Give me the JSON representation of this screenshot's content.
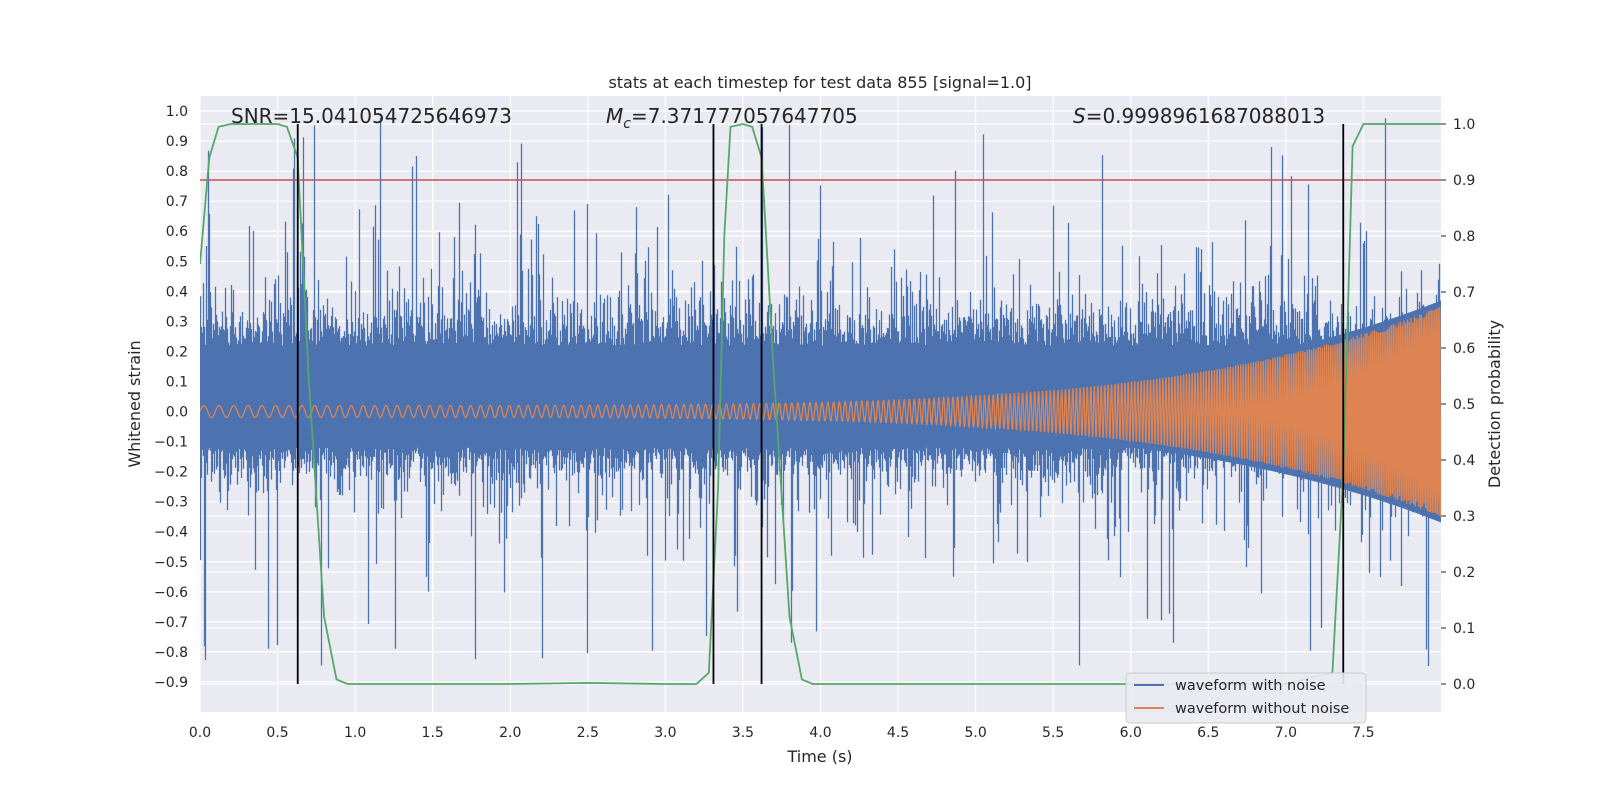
{
  "chart_data": {
    "type": "line",
    "title": "stats at each timestep for test data 855 [signal=1.0]",
    "xlabel": "Time (s)",
    "ylabel": "Whitened strain",
    "y2label": "Detection probability",
    "xlim": [
      0.0,
      8.0
    ],
    "ylim": [
      -1.0,
      1.05
    ],
    "y2lim": [
      -0.05,
      1.05
    ],
    "grid": true,
    "x_ticks": [
      "0.0",
      "0.5",
      "1.0",
      "1.5",
      "2.0",
      "2.5",
      "3.0",
      "3.5",
      "4.0",
      "4.5",
      "5.0",
      "5.5",
      "6.0",
      "6.5",
      "7.0",
      "7.5"
    ],
    "x_tick_values": [
      0.0,
      0.5,
      1.0,
      1.5,
      2.0,
      2.5,
      3.0,
      3.5,
      4.0,
      4.5,
      5.0,
      5.5,
      6.0,
      6.5,
      7.0,
      7.5
    ],
    "y_ticks": [
      "1.0",
      "0.9",
      "0.8",
      "0.7",
      "0.6",
      "0.5",
      "0.4",
      "0.3",
      "0.2",
      "0.1",
      "0.0",
      "−0.1",
      "−0.2",
      "−0.3",
      "−0.4",
      "−0.5",
      "−0.6",
      "−0.7",
      "−0.8",
      "−0.9"
    ],
    "y_tick_values": [
      1.0,
      0.9,
      0.8,
      0.7,
      0.6,
      0.5,
      0.4,
      0.3,
      0.2,
      0.1,
      0.0,
      -0.1,
      -0.2,
      -0.3,
      -0.4,
      -0.5,
      -0.6,
      -0.7,
      -0.8,
      -0.9
    ],
    "y2_ticks": [
      "1.0",
      "0.9",
      "0.8",
      "0.7",
      "0.6",
      "0.5",
      "0.4",
      "0.3",
      "0.2",
      "0.1",
      "0.0"
    ],
    "y2_tick_values": [
      1.0,
      0.9,
      0.8,
      0.7,
      0.6,
      0.5,
      0.4,
      0.3,
      0.2,
      0.1,
      0.0
    ],
    "annotations": {
      "snr": "SNR=15.041054725646973",
      "mc_symbol": "M",
      "mc_sub": "c",
      "mc_value": "=7.371777057647705",
      "s_symbol": "S",
      "s_value": "=0.9998961687088013"
    },
    "threshold": {
      "y2": 0.9,
      "color": "#c44e52"
    },
    "vertical_lines": [
      0.63,
      3.31,
      3.62,
      7.37
    ],
    "vertical_line_range_y2": [
      0.0,
      1.0
    ],
    "series": [
      {
        "name": "waveform with noise",
        "color": "#4c72b0",
        "description": "dense noisy strain, band roughly -0.3 to 0.45 with spikes up to 1.0 and down to -0.87"
      },
      {
        "name": "waveform without noise",
        "color": "#dd8452",
        "description": "chirp signal, amplitude ~0.02 rising to ~0.35 at 8.0 s"
      },
      {
        "name": "detection probability",
        "axis": "y2",
        "color": "#55a868",
        "x": [
          0.0,
          0.06,
          0.12,
          0.2,
          0.3,
          0.4,
          0.5,
          0.56,
          0.63,
          0.7,
          0.8,
          0.88,
          0.95,
          1.2,
          2.0,
          2.5,
          3.0,
          3.2,
          3.28,
          3.34,
          3.38,
          3.42,
          3.5,
          3.56,
          3.62,
          3.7,
          3.8,
          3.88,
          3.95,
          4.2,
          5.0,
          6.0,
          7.0,
          7.3,
          7.37,
          7.43,
          7.5,
          7.6,
          8.0
        ],
        "values": [
          0.75,
          0.94,
          0.995,
          1.0,
          1.0,
          1.0,
          1.0,
          0.995,
          0.94,
          0.55,
          0.12,
          0.008,
          0.0,
          0.0,
          0.0,
          0.002,
          0.0,
          0.0,
          0.02,
          0.35,
          0.8,
          0.995,
          1.0,
          0.995,
          0.94,
          0.55,
          0.12,
          0.008,
          0.0,
          0.0,
          0.0,
          0.0,
          0.0,
          0.02,
          0.38,
          0.96,
          1.0,
          1.0,
          1.0
        ]
      }
    ],
    "legend": {
      "placement": "lower-right",
      "entries": [
        "waveform with noise",
        "waveform without noise"
      ]
    }
  }
}
